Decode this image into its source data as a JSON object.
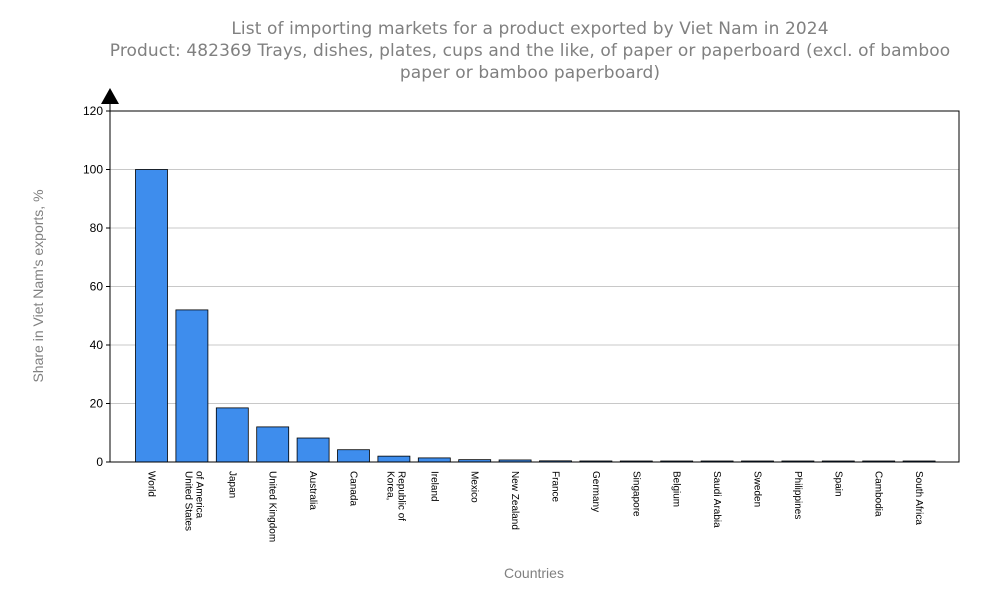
{
  "chart_data": {
    "type": "bar",
    "title": "List of importing markets for a product exported by Viet Nam in 2024",
    "subtitle_line1": "Product: 482369 Trays, dishes, plates, cups and the like, of paper or paperboard (excl. of bamboo",
    "subtitle_line2": "paper or bamboo paperboard)",
    "xlabel": "Countries",
    "ylabel": "Share in Viet Nam's exports, %",
    "ylim": [
      0,
      120
    ],
    "yticks": [
      "0",
      "20",
      "40",
      "60",
      "80",
      "100",
      "120"
    ],
    "grid": true,
    "categories": [
      [
        "World"
      ],
      [
        "United States",
        "of America"
      ],
      [
        "Japan"
      ],
      [
        "United Kingdom"
      ],
      [
        "Australia"
      ],
      [
        "Canada"
      ],
      [
        "Korea,",
        "Republic of"
      ],
      [
        "Ireland"
      ],
      [
        "Mexico"
      ],
      [
        "New Zealand"
      ],
      [
        "France"
      ],
      [
        "Germany"
      ],
      [
        "Singapore"
      ],
      [
        "Belgium"
      ],
      [
        "Saudi Arabia"
      ],
      [
        "Sweden"
      ],
      [
        "Philippines"
      ],
      [
        "Spain"
      ],
      [
        "Cambodia"
      ],
      [
        "South Africa"
      ]
    ],
    "values": [
      100,
      52,
      18.5,
      12,
      8.2,
      4.2,
      2.0,
      1.4,
      0.8,
      0.7,
      0.4,
      0.35,
      0.3,
      0.3,
      0.25,
      0.25,
      0.2,
      0.2,
      0.2,
      0.2
    ],
    "bar_color": "#3e8ded"
  }
}
